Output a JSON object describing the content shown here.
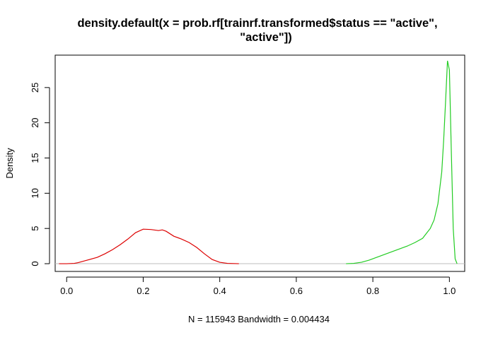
{
  "chart_data": {
    "type": "line",
    "title_lines": [
      "density.default(x = prob.rf[trainrf.transformed$status == \"active\",",
      "\"active\"])"
    ],
    "xlabel": "N = 115943   Bandwidth = 0.004434",
    "ylabel": "Density",
    "xlim": [
      -0.03,
      1.04
    ],
    "ylim": [
      -1.1,
      29.6
    ],
    "x_ticks": [
      0.0,
      0.2,
      0.4,
      0.6,
      0.8,
      1.0
    ],
    "x_tick_labels": [
      "0.0",
      "0.2",
      "0.4",
      "0.6",
      "0.8",
      "1.0"
    ],
    "y_ticks": [
      0,
      5,
      10,
      15,
      20,
      25
    ],
    "y_tick_labels": [
      "0",
      "5",
      "10",
      "15",
      "20",
      "25"
    ],
    "baseline": {
      "y": 0,
      "color": "#bebebe"
    },
    "grid": false,
    "series": [
      {
        "color": "#dd0000",
        "points": [
          [
            -0.02,
            0.0
          ],
          [
            0.0,
            0.0
          ],
          [
            0.02,
            0.05
          ],
          [
            0.03,
            0.15
          ],
          [
            0.05,
            0.45
          ],
          [
            0.08,
            0.9
          ],
          [
            0.1,
            1.4
          ],
          [
            0.12,
            2.0
          ],
          [
            0.14,
            2.7
          ],
          [
            0.16,
            3.5
          ],
          [
            0.18,
            4.4
          ],
          [
            0.2,
            4.9
          ],
          [
            0.22,
            4.85
          ],
          [
            0.24,
            4.7
          ],
          [
            0.25,
            4.8
          ],
          [
            0.26,
            4.6
          ],
          [
            0.28,
            3.9
          ],
          [
            0.3,
            3.5
          ],
          [
            0.32,
            3.0
          ],
          [
            0.34,
            2.3
          ],
          [
            0.36,
            1.4
          ],
          [
            0.38,
            0.6
          ],
          [
            0.4,
            0.2
          ],
          [
            0.42,
            0.05
          ],
          [
            0.45,
            0.0
          ]
        ]
      },
      {
        "color": "#22cc22",
        "points": [
          [
            0.73,
            0.0
          ],
          [
            0.75,
            0.05
          ],
          [
            0.77,
            0.2
          ],
          [
            0.79,
            0.5
          ],
          [
            0.81,
            0.9
          ],
          [
            0.83,
            1.3
          ],
          [
            0.85,
            1.7
          ],
          [
            0.87,
            2.1
          ],
          [
            0.89,
            2.5
          ],
          [
            0.91,
            3.0
          ],
          [
            0.93,
            3.6
          ],
          [
            0.94,
            4.3
          ],
          [
            0.95,
            5.0
          ],
          [
            0.96,
            6.2
          ],
          [
            0.97,
            8.5
          ],
          [
            0.98,
            13.0
          ],
          [
            0.985,
            17.5
          ],
          [
            0.99,
            23.0
          ],
          [
            0.995,
            28.8
          ],
          [
            1.0,
            27.5
          ],
          [
            1.005,
            16.0
          ],
          [
            1.01,
            5.0
          ],
          [
            1.015,
            0.7
          ],
          [
            1.02,
            0.0
          ]
        ]
      }
    ]
  }
}
